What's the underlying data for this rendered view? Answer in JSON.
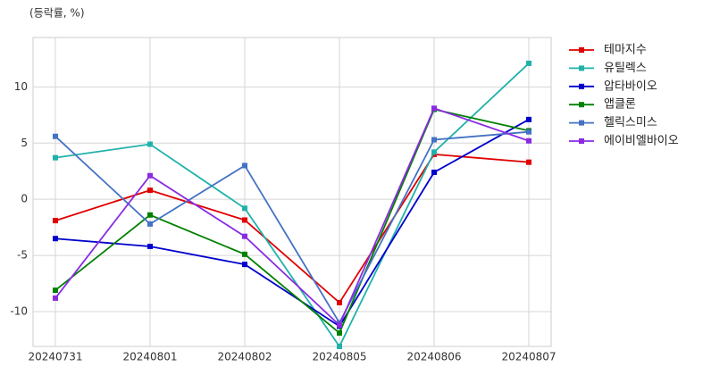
{
  "chart_data": {
    "type": "line",
    "y_label": "(등락률, %)",
    "categories": [
      "20240731",
      "20240801",
      "20240802",
      "20240805",
      "20240806",
      "20240807"
    ],
    "series": [
      {
        "name": "테마지수",
        "color": "#e00000",
        "values": [
          -1.9,
          0.8,
          -1.85,
          -9.2,
          4.0,
          3.3
        ]
      },
      {
        "name": "유틸렉스",
        "color": "#20b2aa",
        "values": [
          3.7,
          4.9,
          -0.8,
          -13.1,
          4.2,
          12.1
        ]
      },
      {
        "name": "압타바이오",
        "color": "#0000cd",
        "values": [
          -3.5,
          -4.2,
          -5.8,
          -11.3,
          2.4,
          7.1
        ]
      },
      {
        "name": "앱클론",
        "color": "#008000",
        "values": [
          -8.1,
          -1.4,
          -4.9,
          -11.9,
          8.0,
          6.1
        ]
      },
      {
        "name": "헬릭스미스",
        "color": "#4472c4",
        "values": [
          5.6,
          -2.2,
          3.0,
          -11.0,
          5.3,
          6.0
        ]
      },
      {
        "name": "에이비엘바이오",
        "color": "#8a2be2",
        "values": [
          -8.8,
          2.1,
          -3.3,
          -11.2,
          8.1,
          5.2
        ]
      }
    ],
    "ylim": [
      -13.1,
      14.4
    ],
    "yticks": [
      -10,
      -5,
      0,
      5,
      10
    ],
    "grid": true,
    "legend": "right"
  }
}
